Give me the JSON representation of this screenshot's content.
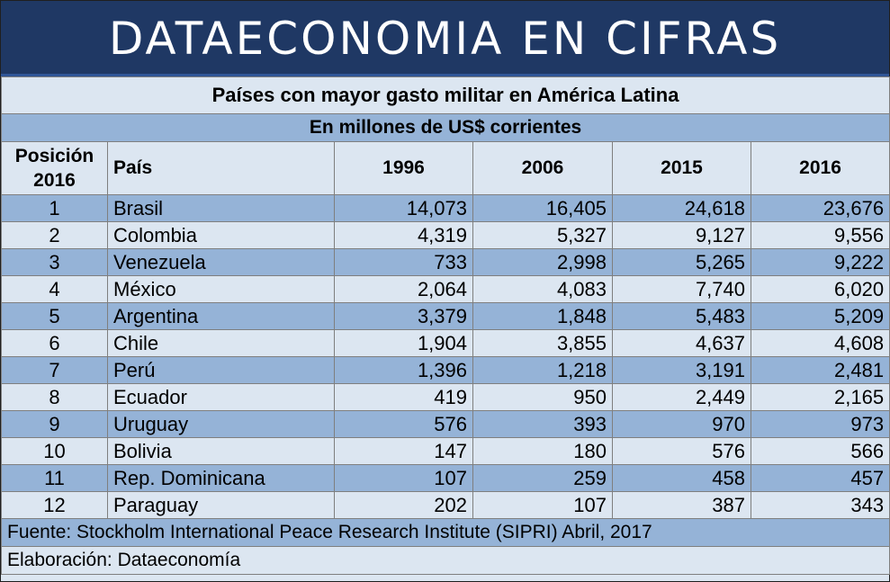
{
  "banner": "DATAECONOMIA EN CIFRAS",
  "table": {
    "title": "Países con mayor gasto militar en América Latina",
    "subtitle": "En millones de US$ corrientes",
    "headers": {
      "position_line1": "Posición",
      "position_line2": "2016",
      "country": "País",
      "y1996": "1996",
      "y2006": "2006",
      "y2015": "2015",
      "y2016": "2016"
    },
    "rows": [
      {
        "rank": "1",
        "country": "Brasil",
        "y1996": "14,073",
        "y2006": "16,405",
        "y2015": "24,618",
        "y2016": "23,676"
      },
      {
        "rank": "2",
        "country": "Colombia",
        "y1996": "4,319",
        "y2006": "5,327",
        "y2015": "9,127",
        "y2016": "9,556"
      },
      {
        "rank": "3",
        "country": "Venezuela",
        "y1996": "733",
        "y2006": "2,998",
        "y2015": "5,265",
        "y2016": "9,222"
      },
      {
        "rank": "4",
        "country": "México",
        "y1996": "2,064",
        "y2006": "4,083",
        "y2015": "7,740",
        "y2016": "6,020"
      },
      {
        "rank": "5",
        "country": "Argentina",
        "y1996": "3,379",
        "y2006": "1,848",
        "y2015": "5,483",
        "y2016": "5,209"
      },
      {
        "rank": "6",
        "country": "Chile",
        "y1996": "1,904",
        "y2006": "3,855",
        "y2015": "4,637",
        "y2016": "4,608"
      },
      {
        "rank": "7",
        "country": "Perú",
        "y1996": "1,396",
        "y2006": "1,218",
        "y2015": "3,191",
        "y2016": "2,481"
      },
      {
        "rank": "8",
        "country": "Ecuador",
        "y1996": "419",
        "y2006": "950",
        "y2015": "2,449",
        "y2016": "2,165"
      },
      {
        "rank": "9",
        "country": "Uruguay",
        "y1996": "576",
        "y2006": "393",
        "y2015": "970",
        "y2016": "973"
      },
      {
        "rank": "10",
        "country": "Bolivia",
        "y1996": "147",
        "y2006": "180",
        "y2015": "576",
        "y2016": "566"
      },
      {
        "rank": "11",
        "country": "Rep. Dominicana",
        "y1996": "107",
        "y2006": "259",
        "y2015": "458",
        "y2016": "457"
      },
      {
        "rank": "12",
        "country": "Paraguay",
        "y1996": "202",
        "y2006": "107",
        "y2015": "387",
        "y2016": "343"
      }
    ],
    "source": "Fuente: Stockholm International Peace Research Institute (SIPRI) Abril, 2017",
    "credit": "Elaboración: Dataeconomía"
  },
  "colors": {
    "banner_bg": "#1f3864",
    "row_dark": "#95b3d7",
    "row_light": "#dce6f1"
  }
}
